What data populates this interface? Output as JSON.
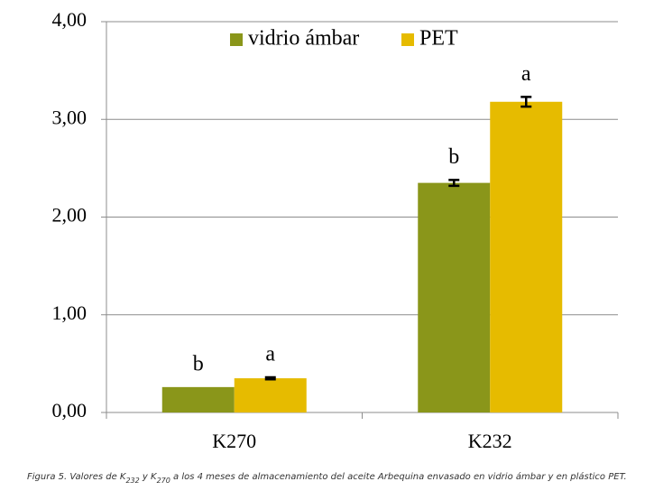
{
  "chart_data": {
    "type": "bar",
    "categories": [
      "K270",
      "K232"
    ],
    "series": [
      {
        "name": "vidrio ámbar",
        "color": "#8a961a",
        "values": [
          0.26,
          2.35
        ],
        "errors": [
          null,
          0.03
        ],
        "letters": [
          "b",
          "b"
        ]
      },
      {
        "name": "PET",
        "color": "#e6bb00",
        "values": [
          0.35,
          3.18
        ],
        "errors": [
          0.01,
          0.05
        ],
        "letters": [
          "a",
          "a"
        ]
      }
    ],
    "ylim": [
      0,
      4
    ],
    "yticks": [
      {
        "value": 0,
        "label": "0,00"
      },
      {
        "value": 1,
        "label": "1,00"
      },
      {
        "value": 2,
        "label": "2,00"
      },
      {
        "value": 3,
        "label": "3,00"
      },
      {
        "value": 4,
        "label": "4,00"
      }
    ],
    "grid": true,
    "legend": "top"
  },
  "caption": [
    "Figura 5. Valores de K",
    "232",
    " y K",
    "270",
    " a los 4 meses de almacenamiento del aceite Arbequina envasado en vidrio ámbar y en plástico PET."
  ]
}
